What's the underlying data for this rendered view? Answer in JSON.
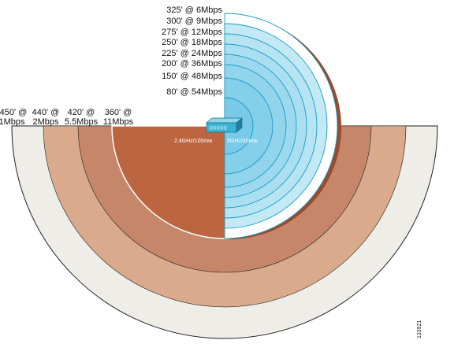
{
  "bands_24": [
    {
      "label": "450' @ 1Mbps",
      "range_line": "450' @",
      "rate_line": "1Mbps",
      "color": "#eeede8"
    },
    {
      "label": "440' @ 2Mbps",
      "range_line": "440' @",
      "rate_line": "2Mbps",
      "color": "#d9ab8c"
    },
    {
      "label": "420' @ 5.5Mbps",
      "range_line": "420' @",
      "rate_line": "5.5Mbps",
      "color": "#c6866a"
    },
    {
      "label": "360' @ 11Mbps",
      "range_line": "360' @",
      "rate_line": "11Mbps",
      "color": "#bb6641"
    }
  ],
  "bands_5": [
    {
      "label": "325' @ 6Mbps"
    },
    {
      "label": "300' @ 9Mbps"
    },
    {
      "label": "275' @ 12Mbps"
    },
    {
      "label": "250' @ 18Mbps"
    },
    {
      "label": "225' @ 24Mbps"
    },
    {
      "label": "200' @ 36Mbps"
    },
    {
      "label": "150' @ 48Mbps"
    },
    {
      "label": "80' @ 54Mbps"
    }
  ],
  "radio_24": {
    "label": "2.4GHz/100mw"
  },
  "radio_5": {
    "label": "5GHz/40mw"
  },
  "figure_number": "133921",
  "colors": {
    "five_ghz_fill": "#bfe7f3",
    "five_ghz_inner": "#8fd3ea",
    "five_ghz_stroke": "#1a9cc5",
    "ap_body": "#3bb3d4"
  }
}
